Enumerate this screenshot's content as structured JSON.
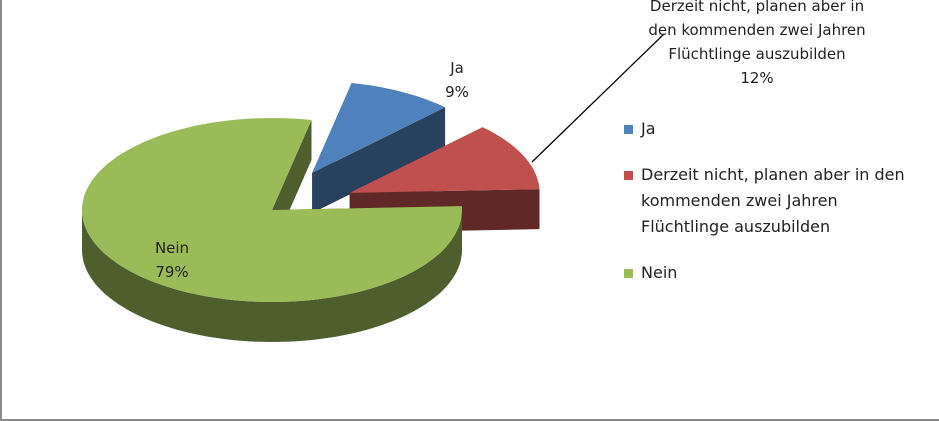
{
  "chart_data": {
    "type": "pie",
    "categories": [
      "Ja",
      "Derzeit nicht, planen aber in den kommenden zwei Jahren Flüchtlinge auszubilden",
      "Nein"
    ],
    "values": [
      9,
      12,
      79
    ],
    "value_labels": [
      "9%",
      "12%",
      "79%"
    ],
    "colors": [
      "#4f81bd",
      "#c0504d",
      "#9bbb59"
    ],
    "legend": "right"
  }
}
